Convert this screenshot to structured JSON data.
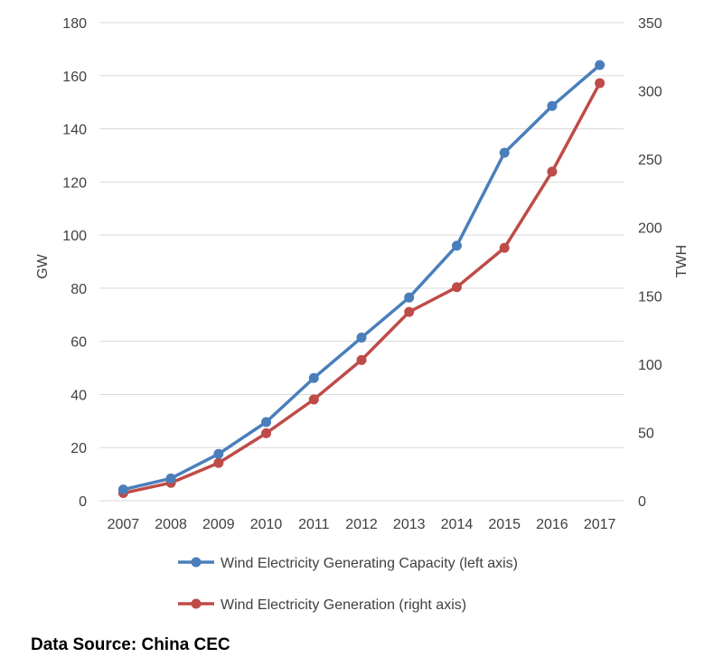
{
  "chart_data": {
    "type": "line",
    "categories": [
      "2007",
      "2008",
      "2009",
      "2010",
      "2011",
      "2012",
      "2013",
      "2014",
      "2015",
      "2016",
      "2017"
    ],
    "series": [
      {
        "name": "Wind Electricity Generating Capacity (left axis)",
        "axis": "left",
        "color": "#4a7ebb",
        "values": [
          4.2,
          8.4,
          17.6,
          29.6,
          46.2,
          61.4,
          76.5,
          96.0,
          131.0,
          148.6,
          164.0
        ]
      },
      {
        "name": "Wind Electricity Generation (right axis)",
        "axis": "right",
        "color": "#be4b48",
        "values": [
          5.6,
          13.1,
          27.6,
          49.4,
          74.1,
          103.0,
          138.2,
          156.3,
          185.1,
          240.9,
          305.7
        ]
      }
    ],
    "left_axis": {
      "label": "GW",
      "ylim": [
        0,
        180
      ],
      "ticks": [
        "0",
        "20",
        "40",
        "60",
        "80",
        "100",
        "120",
        "140",
        "160",
        "180"
      ]
    },
    "right_axis": {
      "label": "TWH",
      "ylim": [
        0,
        350
      ],
      "ticks": [
        "0",
        "50",
        "100",
        "150",
        "200",
        "250",
        "300",
        "350"
      ]
    },
    "grid": "horizontal",
    "legend_position": "bottom"
  },
  "footer": {
    "source": "Data Source: China CEC"
  }
}
